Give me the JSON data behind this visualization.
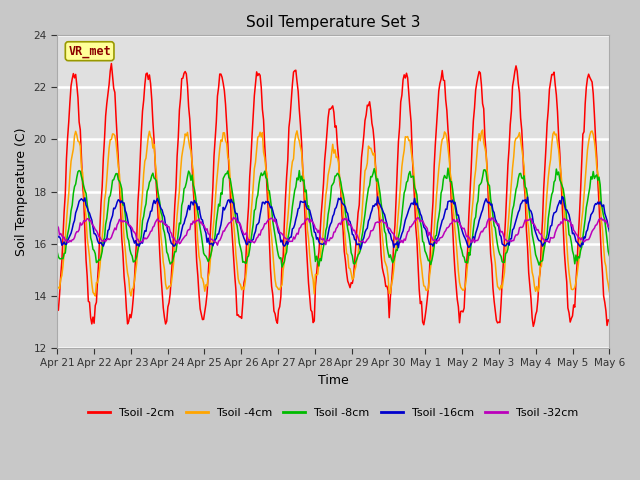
{
  "title": "Soil Temperature Set 3",
  "xlabel": "Time",
  "ylabel": "Soil Temperature (C)",
  "ylim": [
    12,
    24
  ],
  "yticks": [
    12,
    14,
    16,
    18,
    20,
    22,
    24
  ],
  "fig_bg_color": "#c8c8c8",
  "plot_bg_color": "#e0e0e0",
  "annotation": "VR_met",
  "annotation_color": "#8B0000",
  "annotation_bg": "#FFFF99",
  "annotation_edge": "#999900",
  "series_colors": [
    "#ff0000",
    "#ffa500",
    "#00bb00",
    "#0000cc",
    "#bb00bb"
  ],
  "series_labels": [
    "Tsoil -2cm",
    "Tsoil -4cm",
    "Tsoil -8cm",
    "Tsoil -16cm",
    "Tsoil -32cm"
  ],
  "x_tick_labels": [
    "Apr 21",
    "Apr 22",
    "Apr 23",
    "Apr 24",
    "Apr 25",
    "Apr 26",
    "Apr 27",
    "Apr 28",
    "Apr 29",
    "Apr 30",
    "May 1",
    "May 2",
    "May 3",
    "May 4",
    "May 5",
    "May 6"
  ],
  "n_points": 480,
  "period_days": 15,
  "figsize": [
    6.4,
    4.8
  ],
  "dpi": 100
}
